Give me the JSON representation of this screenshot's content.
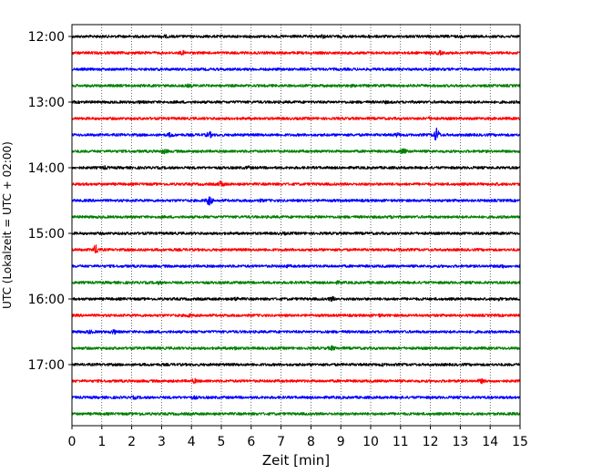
{
  "chart_data": {
    "type": "line",
    "title": "",
    "xlabel": "Zeit  [min]",
    "ylabel": "UTC (Lokalzeit = UTC + 02:00)",
    "xlim": [
      0,
      15
    ],
    "x_ticks": [
      "0",
      "1",
      "2",
      "3",
      "4",
      "5",
      "6",
      "7",
      "8",
      "9",
      "10",
      "11",
      "12",
      "13",
      "14",
      "15"
    ],
    "y_tick_labels": [
      "12:00",
      "13:00",
      "14:00",
      "15:00",
      "16:00",
      "17:00"
    ],
    "grid": {
      "vertical_dotted": true
    },
    "colors": {
      "black": "#000000",
      "red": "#ff0000",
      "blue": "#0000ff",
      "green": "#007f00"
    },
    "traces": [
      {
        "start": "12:00",
        "color": "black",
        "events": [
          {
            "t": 3.1,
            "a": 0.8
          },
          {
            "t": 8.4,
            "a": 1.0
          },
          {
            "t": 9.9,
            "a": 0.6
          }
        ]
      },
      {
        "start": "12:15",
        "color": "red",
        "events": [
          {
            "t": 3.7,
            "a": 1.4
          },
          {
            "t": 12.3,
            "a": 1.3
          }
        ]
      },
      {
        "start": "12:30",
        "color": "blue",
        "events": [
          {
            "t": 7.8,
            "a": 0.5
          }
        ]
      },
      {
        "start": "12:45",
        "color": "green",
        "events": [
          {
            "t": 3.9,
            "a": 0.6
          },
          {
            "t": 9.3,
            "a": 0.6
          }
        ]
      },
      {
        "start": "13:00",
        "color": "black",
        "events": [
          {
            "t": 2.3,
            "a": 0.5
          },
          {
            "t": 10.5,
            "a": 0.5
          }
        ]
      },
      {
        "start": "13:15",
        "color": "red",
        "events": [
          {
            "t": 12.0,
            "a": 1.0
          }
        ]
      },
      {
        "start": "13:30",
        "color": "blue",
        "events": [
          {
            "t": 3.3,
            "a": 1.5
          },
          {
            "t": 4.6,
            "a": 2.4
          },
          {
            "t": 10.9,
            "a": 1.3
          },
          {
            "t": 12.2,
            "a": 6.5
          }
        ]
      },
      {
        "start": "13:45",
        "color": "green",
        "events": [
          {
            "t": 3.1,
            "a": 1.7
          },
          {
            "t": 11.1,
            "a": 2.2
          }
        ]
      },
      {
        "start": "14:00",
        "color": "black",
        "events": [
          {
            "t": 1.1,
            "a": 1.0
          },
          {
            "t": 5.9,
            "a": 0.7
          }
        ]
      },
      {
        "start": "14:15",
        "color": "red",
        "events": [
          {
            "t": 5.0,
            "a": 2.4
          },
          {
            "t": 14.2,
            "a": 0.6
          }
        ]
      },
      {
        "start": "14:30",
        "color": "blue",
        "events": [
          {
            "t": 4.6,
            "a": 4.2
          },
          {
            "t": 6.3,
            "a": 0.6
          }
        ]
      },
      {
        "start": "14:45",
        "color": "green",
        "events": [
          {
            "t": 8.3,
            "a": 0.6
          },
          {
            "t": 10.7,
            "a": 0.6
          }
        ]
      },
      {
        "start": "15:00",
        "color": "black",
        "events": [
          {
            "t": 7.1,
            "a": 0.5
          }
        ]
      },
      {
        "start": "15:15",
        "color": "red",
        "events": [
          {
            "t": 0.8,
            "a": 4.0
          },
          {
            "t": 2.3,
            "a": 0.7
          },
          {
            "t": 11.0,
            "a": 0.7
          }
        ]
      },
      {
        "start": "15:30",
        "color": "blue",
        "events": [
          {
            "t": 7.2,
            "a": 0.7
          },
          {
            "t": 14.4,
            "a": 1.2
          }
        ]
      },
      {
        "start": "15:45",
        "color": "green",
        "events": [
          {
            "t": 2.9,
            "a": 0.7
          },
          {
            "t": 8.9,
            "a": 0.7
          }
        ]
      },
      {
        "start": "16:00",
        "color": "black",
        "events": [
          {
            "t": 5.5,
            "a": 1.2
          },
          {
            "t": 8.7,
            "a": 1.6
          },
          {
            "t": 14.3,
            "a": 0.8
          }
        ]
      },
      {
        "start": "16:15",
        "color": "red",
        "events": [
          {
            "t": 3.9,
            "a": 1.0
          },
          {
            "t": 10.3,
            "a": 0.8
          }
        ]
      },
      {
        "start": "16:30",
        "color": "blue",
        "events": [
          {
            "t": 0.6,
            "a": 1.1
          },
          {
            "t": 1.4,
            "a": 1.5
          }
        ]
      },
      {
        "start": "16:45",
        "color": "green",
        "events": [
          {
            "t": 5.5,
            "a": 0.9
          },
          {
            "t": 8.7,
            "a": 1.6
          }
        ]
      },
      {
        "start": "17:00",
        "color": "black",
        "events": [
          {
            "t": 10.4,
            "a": 0.6
          }
        ]
      },
      {
        "start": "17:15",
        "color": "red",
        "events": [
          {
            "t": 4.1,
            "a": 1.6
          },
          {
            "t": 13.7,
            "a": 1.5
          }
        ]
      },
      {
        "start": "17:30",
        "color": "blue",
        "events": [
          {
            "t": 2.1,
            "a": 0.7
          },
          {
            "t": 4.1,
            "a": 0.8
          }
        ]
      },
      {
        "start": "17:45",
        "color": "green",
        "events": [
          {
            "t": 2.3,
            "a": 0.6
          }
        ]
      }
    ]
  }
}
